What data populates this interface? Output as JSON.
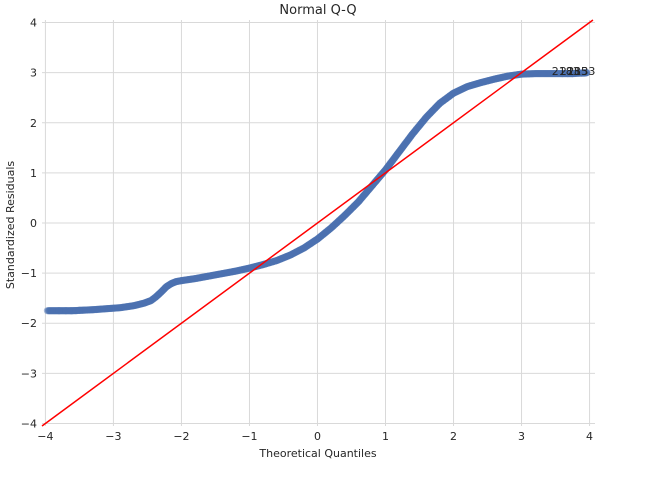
{
  "chart_data": {
    "type": "scatter",
    "title": "Normal Q-Q",
    "xlabel": "Theoretical Quantiles",
    "ylabel": "Standardized Residuals",
    "xlim": [
      -4.05,
      4.08
    ],
    "ylim": [
      -4.05,
      4.05
    ],
    "x_ticks": [
      -4,
      -3,
      -2,
      -1,
      0,
      1,
      2,
      3,
      4
    ],
    "y_ticks": [
      -4,
      -3,
      -2,
      -1,
      0,
      1,
      2,
      3,
      4
    ],
    "x_tick_labels": [
      "−4",
      "−3",
      "−2",
      "−1",
      "0",
      "1",
      "2",
      "3",
      "4"
    ],
    "y_tick_labels": [
      "−4",
      "−3",
      "−2",
      "−1",
      "0",
      "1",
      "2",
      "3",
      "4"
    ],
    "grid": true,
    "point_color": "#4c72b0",
    "line_color": "#ff0000",
    "reference_line": {
      "slope": 1,
      "intercept": 0
    },
    "curve": {
      "x": [
        -3.95,
        -3.75,
        -3.6,
        -3.45,
        -3.3,
        -3.1,
        -2.9,
        -2.7,
        -2.55,
        -2.45,
        -2.38,
        -2.3,
        -2.22,
        -2.15,
        -2.08,
        -2.0,
        -1.8,
        -1.6,
        -1.4,
        -1.2,
        -1.0,
        -0.8,
        -0.6,
        -0.4,
        -0.2,
        0.0,
        0.2,
        0.4,
        0.6,
        0.8,
        1.0,
        1.2,
        1.4,
        1.6,
        1.8,
        2.0,
        2.2,
        2.4,
        2.6,
        2.8,
        3.0,
        3.2,
        3.4,
        3.6,
        3.75,
        3.85,
        3.92,
        3.97
      ],
      "y": [
        -1.75,
        -1.75,
        -1.75,
        -1.74,
        -1.73,
        -1.71,
        -1.69,
        -1.65,
        -1.6,
        -1.55,
        -1.48,
        -1.38,
        -1.27,
        -1.21,
        -1.17,
        -1.15,
        -1.11,
        -1.06,
        -1.01,
        -0.96,
        -0.9,
        -0.83,
        -0.75,
        -0.64,
        -0.5,
        -0.32,
        -0.1,
        0.15,
        0.42,
        0.74,
        1.06,
        1.42,
        1.78,
        2.11,
        2.39,
        2.59,
        2.72,
        2.8,
        2.87,
        2.93,
        2.97,
        2.98,
        2.98,
        2.98,
        2.98,
        2.99,
        2.99,
        3.0
      ]
    },
    "sparse_points": {
      "x": [
        -3.97,
        -3.8,
        -3.7,
        -3.62,
        -3.55,
        -3.5,
        3.6,
        3.68,
        3.75,
        3.8,
        3.85,
        3.88,
        3.92,
        3.96
      ],
      "y": [
        -1.75,
        -1.75,
        -1.75,
        -1.75,
        -1.75,
        -1.74,
        2.98,
        2.98,
        2.98,
        2.99,
        2.99,
        2.99,
        3.0,
        3.0
      ]
    },
    "annotations": [
      {
        "text": "2183",
        "x": 3.65,
        "y": 3.03
      },
      {
        "text": "2185",
        "x": 3.77,
        "y": 3.03
      },
      {
        "text": "2133",
        "x": 3.88,
        "y": 3.03
      }
    ]
  }
}
